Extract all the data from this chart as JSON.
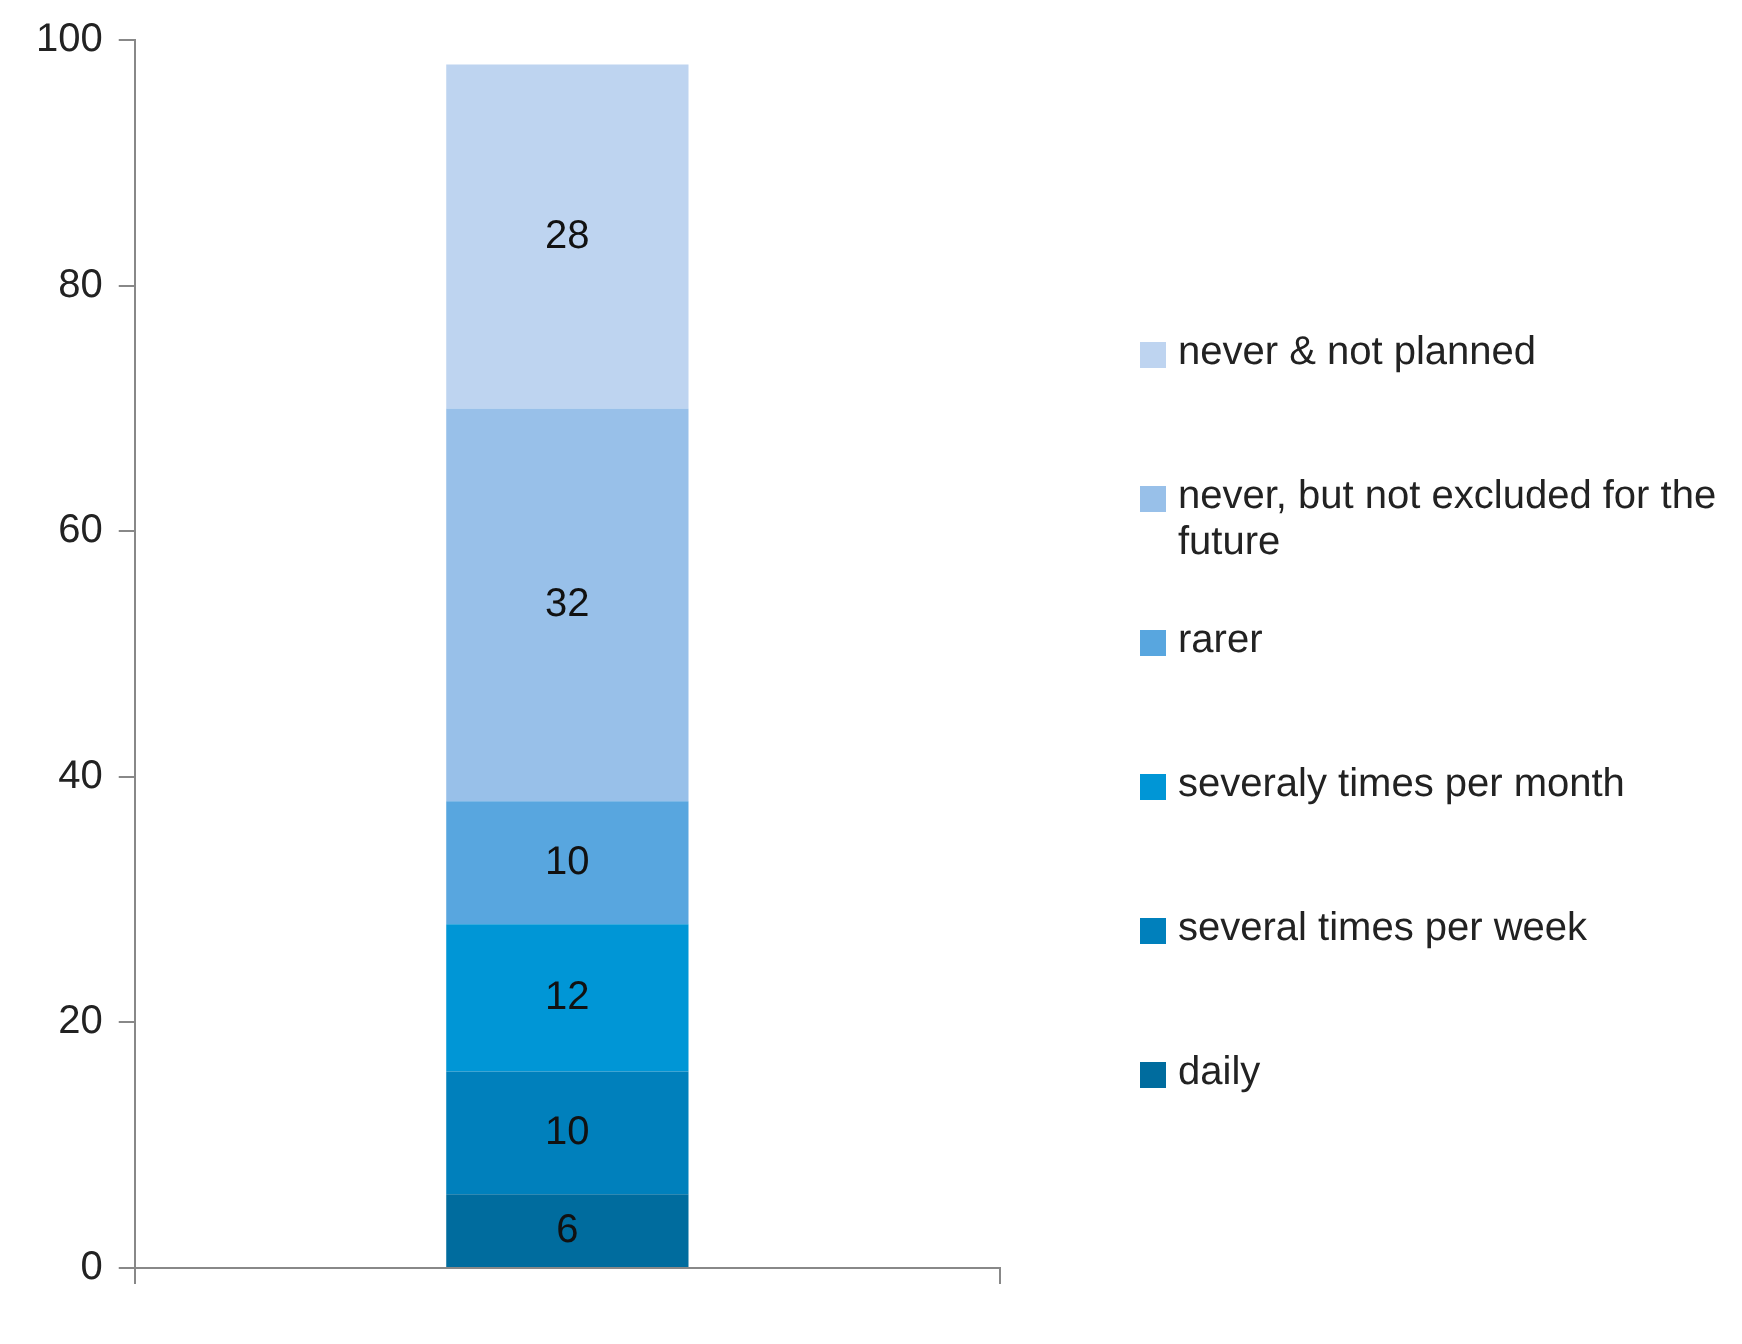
{
  "chart_data": {
    "type": "bar",
    "stacked": true,
    "categories": [
      null
    ],
    "series": [
      {
        "name": "daily",
        "color": "#006c9e",
        "values": [
          6
        ]
      },
      {
        "name": "several times per week",
        "color": "#0080bc",
        "values": [
          10
        ]
      },
      {
        "name": "severaly times per month",
        "color": "#0096d6",
        "values": [
          12
        ]
      },
      {
        "name": "rarer",
        "color": "#58a6df",
        "values": [
          10
        ]
      },
      {
        "name": "never, but not excluded for the future",
        "color": "#98c0e9",
        "values": [
          32
        ]
      },
      {
        "name": "never & not planned",
        "color": "#bed4f0",
        "values": [
          28
        ]
      }
    ],
    "ylim": [
      0,
      100
    ],
    "yticks": [
      0,
      20,
      40,
      60,
      80,
      100
    ],
    "grid": false,
    "legend": "right",
    "data_labels": true
  }
}
